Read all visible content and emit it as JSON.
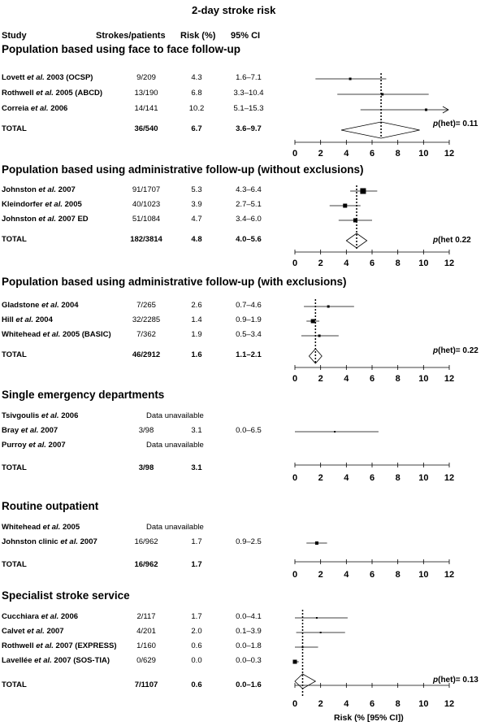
{
  "title": "2-day stroke risk",
  "headers": {
    "study": "Study",
    "events": "Strokes/patients",
    "risk": "Risk (%)",
    "ci": "95% CI"
  },
  "chart_data": {
    "type": "forest",
    "xlabel": "Risk (% [95% CI])",
    "xlim": [
      0,
      12
    ],
    "ticks": [
      0,
      2,
      4,
      6,
      8,
      10,
      12
    ],
    "groups": [
      {
        "name": "Population based using face to face follow-up",
        "studies": [
          {
            "author": "Lovett",
            "suffix": " 2003 (OCSP)",
            "events": "9/209",
            "risk": "4.3",
            "ci": "1.6–7.1",
            "est": 4.3,
            "lo": 1.6,
            "hi": 7.1,
            "w": 3
          },
          {
            "author": "Rothwell",
            "suffix": " 2005 (ABCD)",
            "events": "13/190",
            "risk": "6.8",
            "ci": "3.3–10.4",
            "est": 6.8,
            "lo": 3.3,
            "hi": 10.4,
            "w": 3
          },
          {
            "author": "Correia",
            "suffix": " 2006",
            "events": "14/141",
            "risk": "10.2",
            "ci": "5.1–15.3",
            "est": 10.2,
            "lo": 5.1,
            "hi": 15.3,
            "w": 3,
            "arrow": true
          }
        ],
        "total": {
          "label": "TOTAL",
          "events": "36/540",
          "risk": "6.7",
          "ci": "3.6–9.7",
          "est": 6.7,
          "lo": 3.6,
          "hi": 9.7
        },
        "het": "= 0.11",
        "het_label": "p",
        "het_word": "(het)"
      },
      {
        "name": "Population based using administrative follow-up (without exclusions)",
        "studies": [
          {
            "author": "Johnston",
            "suffix": " 2007",
            "events": "91/1707",
            "risk": "5.3",
            "ci": "4.3–6.4",
            "est": 5.3,
            "lo": 4.3,
            "hi": 6.4,
            "w": 7
          },
          {
            "author": "Kleindorfer",
            "suffix": " 2005",
            "events": "40/1023",
            "risk": "3.9",
            "ci": "2.7–5.1",
            "est": 3.9,
            "lo": 2.7,
            "hi": 5.1,
            "w": 5
          },
          {
            "author": "Johnston",
            "suffix": " 2007 ED",
            "events": "51/1084",
            "risk": "4.7",
            "ci": "3.4–6.0",
            "est": 4.7,
            "lo": 3.4,
            "hi": 6.0,
            "w": 5
          }
        ],
        "total": {
          "label": "TOTAL",
          "events": "182/3814",
          "risk": "4.8",
          "ci": "4.0–5.6",
          "est": 4.8,
          "lo": 4.0,
          "hi": 5.6
        },
        "het": " 0.22",
        "het_label": "p",
        "het_word": "(het"
      },
      {
        "name": "Population based using administrative follow-up (with exclusions)",
        "studies": [
          {
            "author": "Gladstone",
            "suffix": " 2004",
            "events": "7/265",
            "risk": "2.6",
            "ci": "0.7–4.6",
            "est": 2.6,
            "lo": 0.7,
            "hi": 4.6,
            "w": 3
          },
          {
            "author": "Hill",
            "suffix": " 2004",
            "events": "32/2285",
            "risk": "1.4",
            "ci": "0.9–1.9",
            "est": 1.4,
            "lo": 0.9,
            "hi": 1.9,
            "w": 5
          },
          {
            "author": "Whitehead",
            "suffix": " 2005 (BASIC)",
            "events": "7/362",
            "risk": "1.9",
            "ci": "0.5–3.4",
            "est": 1.9,
            "lo": 0.5,
            "hi": 3.4,
            "w": 3
          }
        ],
        "total": {
          "label": "TOTAL",
          "events": "46/2912",
          "risk": "1.6",
          "ci": "1.1–2.1",
          "est": 1.6,
          "lo": 1.1,
          "hi": 2.1
        },
        "het": "= 0.22",
        "het_label": "p",
        "het_word": "(het)"
      },
      {
        "name": "Single emergency departments",
        "studies": [
          {
            "author": "Tsivgoulis",
            "suffix": " 2006",
            "unavailable": "Data unavailable"
          },
          {
            "author": "Bray",
            "suffix": " 2007",
            "events": "3/98",
            "risk": "3.1",
            "ci": "0.0–6.5",
            "est": 3.1,
            "lo": 0.0,
            "hi": 6.5,
            "w": 2
          },
          {
            "author": "Purroy",
            "suffix": " 2007",
            "unavailable": "Data unavailable"
          }
        ],
        "total": {
          "label": "TOTAL",
          "events": "3/98",
          "risk": "3.1",
          "ci": ""
        }
      },
      {
        "name": "Routine outpatient",
        "studies": [
          {
            "author": "Whitehead",
            "suffix": " 2005",
            "unavailable": "Data unavailable"
          },
          {
            "author": "Johnston clinic",
            "suffix": " 2007",
            "events": "16/962",
            "risk": "1.7",
            "ci": "0.9–2.5",
            "est": 1.7,
            "lo": 0.9,
            "hi": 2.5,
            "w": 4
          }
        ],
        "total": {
          "label": "TOTAL",
          "events": "16/962",
          "risk": "1.7",
          "ci": ""
        }
      },
      {
        "name": "Specialist stroke service",
        "studies": [
          {
            "author": "Cucchiara",
            "suffix": " 2006",
            "events": "2/117",
            "risk": "1.7",
            "ci": "0.0–4.1",
            "est": 1.7,
            "lo": 0.0,
            "hi": 4.1,
            "w": 2
          },
          {
            "author": "Calvet",
            "suffix": " 2007",
            "events": "4/201",
            "risk": "2.0",
            "ci": "0.1–3.9",
            "est": 2.0,
            "lo": 0.1,
            "hi": 3.9,
            "w": 2
          },
          {
            "author": "Rothwell",
            "suffix": " 2007 (EXPRESS)",
            "events": "1/160",
            "risk": "0.6",
            "ci": "0.0–1.8",
            "est": 0.6,
            "lo": 0.0,
            "hi": 1.8,
            "w": 2
          },
          {
            "author": "Lavellée",
            "suffix": " 2007 (SOS-TIA)",
            "events": "0/629",
            "risk": "0.0",
            "ci": "0.0–0.3",
            "est": 0.0,
            "lo": 0.0,
            "hi": 0.3,
            "w": 5
          }
        ],
        "total": {
          "label": "TOTAL",
          "events": "7/1107",
          "risk": "0.6",
          "ci": "0.0–1.6",
          "est": 0.6,
          "lo": 0.0,
          "hi": 1.6
        },
        "het": "= 0.13",
        "het_label": "p",
        "het_word": "(het)"
      }
    ]
  },
  "etal": " et al."
}
